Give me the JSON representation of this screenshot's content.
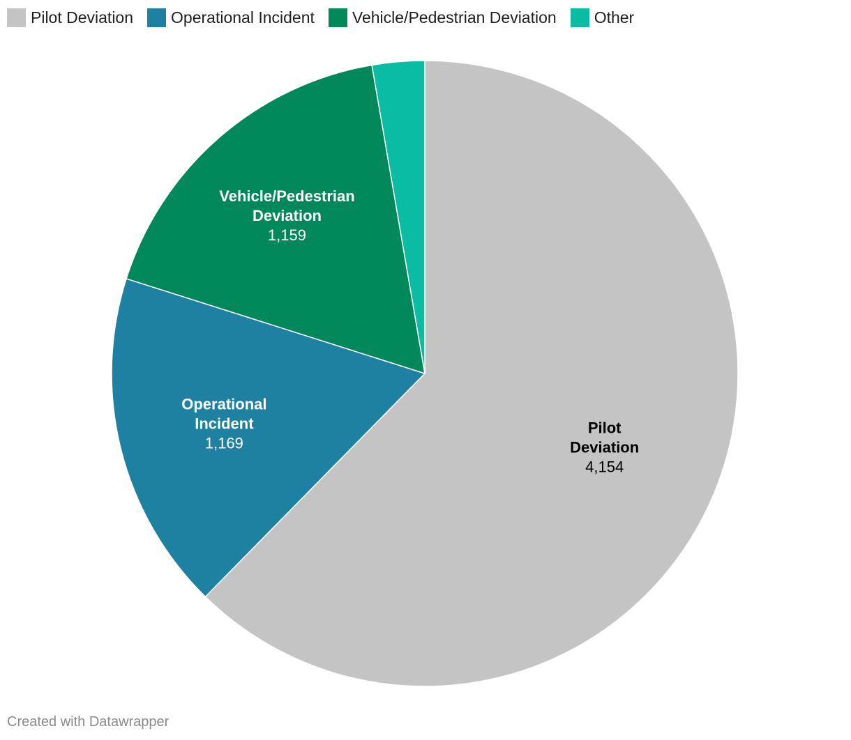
{
  "chart_data": {
    "type": "pie",
    "title": "",
    "legend_position": "top-left",
    "categories": [
      "Pilot Deviation",
      "Operational Incident",
      "Vehicle/Pedestrian Deviation",
      "Other"
    ],
    "values": [
      4154,
      1169,
      1159,
      180
    ],
    "colors": [
      "#c4c4c4",
      "#1f81a1",
      "#00875a",
      "#0abca1"
    ],
    "slices": [
      {
        "label_lines": [
          "Pilot",
          "Deviation"
        ],
        "value_text": "4,154",
        "label_color": "#000000"
      },
      {
        "label_lines": [
          "Operational",
          "Incident"
        ],
        "value_text": "1,169",
        "label_color": "#ffffff"
      },
      {
        "label_lines": [
          "Vehicle/Pedestrian",
          "Deviation"
        ],
        "value_text": "1,159",
        "label_color": "#ffffff"
      },
      {
        "label_lines": [],
        "value_text": "",
        "label_color": "#ffffff"
      }
    ]
  },
  "legend": {
    "items": [
      {
        "label": "Pilot Deviation",
        "color": "#c4c4c4"
      },
      {
        "label": "Operational Incident",
        "color": "#1f81a1"
      },
      {
        "label": "Vehicle/Pedestrian Deviation",
        "color": "#00875a"
      },
      {
        "label": "Other",
        "color": "#0abca1"
      }
    ]
  },
  "footer": {
    "credit": "Created with Datawrapper"
  }
}
